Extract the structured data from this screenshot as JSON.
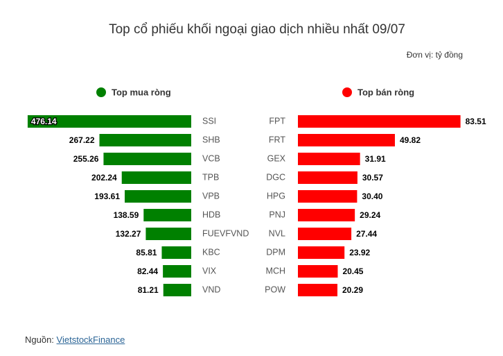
{
  "title": "Top cổ phiếu khối ngoại giao dịch nhiều nhất 09/07",
  "unit": "Đơn vị: tỷ đồng",
  "source": {
    "label": "Nguồn:",
    "link": "VietstockFinance"
  },
  "chart_data": [
    {
      "type": "bar",
      "orientation": "horizontal",
      "direction": "left",
      "categories": [
        "SSI",
        "SHB",
        "VCB",
        "TPB",
        "VPB",
        "HDB",
        "FUEVFVND",
        "KBC",
        "VIX",
        "VND"
      ],
      "series": [
        {
          "name": "Top mua ròng",
          "color": "#008000",
          "values": [
            476.14,
            267.22,
            255.26,
            202.24,
            193.61,
            138.59,
            132.27,
            85.81,
            82.44,
            81.21
          ],
          "value_labels": [
            "476.14",
            "267.22",
            "255.26",
            "202.24",
            "193.61",
            "138.59",
            "132.27",
            "85.81",
            "82.44",
            "81.21"
          ]
        }
      ],
      "xlim": [
        0,
        480
      ]
    },
    {
      "type": "bar",
      "orientation": "horizontal",
      "direction": "right",
      "categories": [
        "FPT",
        "FRT",
        "GEX",
        "DGC",
        "HPG",
        "PNJ",
        "NVL",
        "DPM",
        "MCH",
        "POW"
      ],
      "series": [
        {
          "name": "Top bán ròng",
          "color": "#ff0000",
          "values": [
            83.51,
            49.82,
            31.91,
            30.57,
            30.4,
            29.24,
            27.44,
            23.92,
            20.45,
            20.29
          ],
          "value_labels": [
            "83.51",
            "49.82",
            "31.91",
            "30.57",
            "30.40",
            "29.24",
            "27.44",
            "23.92",
            "20.45",
            "20.29"
          ]
        }
      ],
      "xlim": [
        0,
        84
      ]
    }
  ]
}
